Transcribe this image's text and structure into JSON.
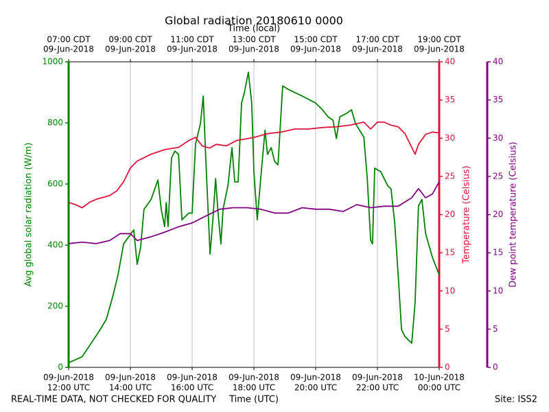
{
  "chart_data": {
    "type": "line",
    "title": "Global radiation 20180610 0000",
    "xlabel_top": "Time (local)",
    "xlabel": "Time (UTC)",
    "ylabel": "Avg global solar radiation (W/m)",
    "y2label": "Temperature (Celsius)",
    "y3label": "Dew point temperature (Celsius)",
    "footer_left": "REAL-TIME DATA, NOT CHECKED FOR QUALITY",
    "footer_right": "Site: ISS2",
    "grid": true,
    "xlim": [
      12,
      24
    ],
    "xticks": [
      {
        "value": 12,
        "label": [
          "09-Jun-2018",
          "12:00 UTC"
        ]
      },
      {
        "value": 14,
        "label": [
          "09-Jun-2018",
          "14:00 UTC"
        ]
      },
      {
        "value": 16,
        "label": [
          "09-Jun-2018",
          "16:00 UTC"
        ]
      },
      {
        "value": 18,
        "label": [
          "09-Jun-2018",
          "18:00 UTC"
        ]
      },
      {
        "value": 20,
        "label": [
          "09-Jun-2018",
          "20:00 UTC"
        ]
      },
      {
        "value": 22,
        "label": [
          "09-Jun-2018",
          "22:00 UTC"
        ]
      },
      {
        "value": 24,
        "label": [
          "10-Jun-2018",
          "00:00 UTC"
        ]
      }
    ],
    "xticks_top": [
      {
        "value": 12,
        "label": [
          "07:00 CDT",
          "09-Jun-2018"
        ]
      },
      {
        "value": 14,
        "label": [
          "09:00 CDT",
          "09-Jun-2018"
        ]
      },
      {
        "value": 16,
        "label": [
          "11:00 CDT",
          "09-Jun-2018"
        ]
      },
      {
        "value": 18,
        "label": [
          "13:00 CDT",
          "09-Jun-2018"
        ]
      },
      {
        "value": 20,
        "label": [
          "15:00 CDT",
          "09-Jun-2018"
        ]
      },
      {
        "value": 22,
        "label": [
          "17:00 CDT",
          "09-Jun-2018"
        ]
      },
      {
        "value": 24,
        "label": [
          "19:00 CDT",
          "09-Jun-2018"
        ]
      }
    ],
    "ylim": [
      0,
      1000
    ],
    "yticks": [
      0,
      200,
      400,
      600,
      800,
      1000
    ],
    "y2lim": [
      0,
      40
    ],
    "y2ticks": [
      0,
      5,
      10,
      15,
      20,
      25,
      30,
      35,
      40
    ],
    "y3lim": [
      0,
      40
    ],
    "y3ticks": [
      0,
      5,
      10,
      15,
      20,
      25,
      30,
      35,
      40
    ],
    "series": [
      {
        "color": "#008000",
        "axis": "y",
        "x": [
          12.0,
          12.44,
          13.0,
          13.22,
          13.44,
          13.6,
          13.78,
          14.11,
          14.22,
          14.33,
          14.44,
          14.67,
          14.89,
          15.0,
          15.11,
          15.16,
          15.22,
          15.33,
          15.44,
          15.56,
          15.67,
          15.89,
          16.0,
          16.11,
          16.27,
          16.36,
          16.44,
          16.58,
          16.67,
          16.76,
          16.84,
          16.93,
          17.0,
          17.16,
          17.29,
          17.38,
          17.49,
          17.6,
          17.69,
          17.82,
          17.93,
          18.0,
          18.11,
          18.22,
          18.36,
          18.44,
          18.56,
          18.67,
          18.78,
          18.93,
          19.11,
          19.56,
          20.0,
          20.22,
          20.4,
          20.56,
          20.67,
          20.78,
          21.0,
          21.16,
          21.29,
          21.56,
          21.67,
          21.78,
          21.84,
          21.91,
          22.11,
          22.33,
          22.44,
          22.56,
          22.67,
          22.78,
          22.89,
          23.11,
          23.22,
          23.33,
          23.44,
          23.56,
          23.78,
          24.0
        ],
        "values": [
          15,
          35,
          120,
          157,
          236,
          303,
          404,
          450,
          337,
          393,
          517,
          550,
          613,
          517,
          461,
          539,
          461,
          685,
          708,
          697,
          483,
          505,
          505,
          730,
          798,
          888,
          685,
          371,
          483,
          618,
          505,
          404,
          517,
          595,
          719,
          607,
          607,
          865,
          899,
          966,
          865,
          640,
          483,
          618,
          776,
          697,
          719,
          674,
          663,
          921,
          910,
          888,
          865,
          843,
          820,
          809,
          749,
          820,
          831,
          843,
          798,
          753,
          618,
          416,
          404,
          652,
          640,
          595,
          584,
          472,
          303,
          124,
          101,
          79,
          213,
          528,
          550,
          438,
          360,
          303
        ]
      },
      {
        "color": "#dc143c",
        "axis": "y2",
        "x": [
          12,
          12.22,
          12.44,
          12.67,
          12.89,
          13.33,
          13.56,
          13.78,
          14,
          14.22,
          14.67,
          15.11,
          15.56,
          15.89,
          16.11,
          16.33,
          16.56,
          16.78,
          17.11,
          17.44,
          18,
          18.44,
          18.89,
          19.33,
          19.78,
          20.22,
          20.67,
          21.11,
          21.56,
          21.78,
          22,
          22.22,
          22.44,
          22.67,
          22.89,
          23.11,
          23.22,
          23.33,
          23.56,
          23.78,
          24
        ],
        "values": [
          21.6,
          21.3,
          20.9,
          21.6,
          22.0,
          22.5,
          23.1,
          24.3,
          26.1,
          27.0,
          27.9,
          28.5,
          28.8,
          29.7,
          30.1,
          29.0,
          28.7,
          29.2,
          29.0,
          29.7,
          30.1,
          30.6,
          30.8,
          31.2,
          31.2,
          31.4,
          31.5,
          31.7,
          32.1,
          31.2,
          32.1,
          32.1,
          31.7,
          31.5,
          30.6,
          28.8,
          27.9,
          29.2,
          30.5,
          30.8,
          30.7
        ]
      },
      {
        "color": "#800080",
        "axis": "y3",
        "x": [
          12,
          12.44,
          12.89,
          13.33,
          13.67,
          14,
          14.22,
          14.67,
          15.11,
          15.56,
          16,
          16.44,
          16.89,
          17.33,
          17.78,
          18.22,
          18.67,
          19.11,
          19.56,
          20,
          20.44,
          20.89,
          21.33,
          21.78,
          22.22,
          22.67,
          23.11,
          23.33,
          23.56,
          23.78,
          24
        ],
        "values": [
          16.2,
          16.4,
          16.2,
          16.6,
          17.5,
          17.5,
          16.6,
          17.1,
          17.7,
          18.4,
          18.9,
          19.8,
          20.7,
          20.9,
          20.9,
          20.7,
          20.2,
          20.2,
          20.9,
          20.7,
          20.7,
          20.4,
          21.3,
          20.9,
          21.1,
          21.1,
          22.2,
          23.4,
          22.2,
          22.7,
          24.3
        ]
      }
    ]
  }
}
